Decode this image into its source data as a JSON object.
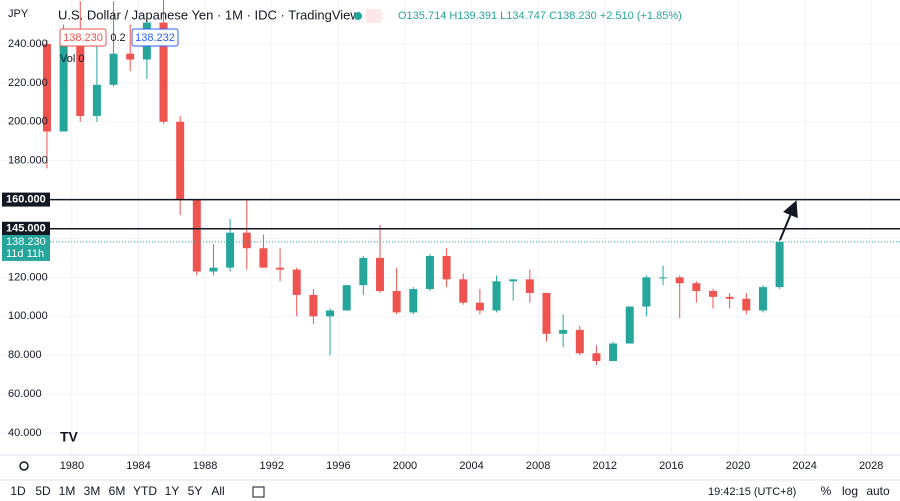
{
  "header": {
    "symbol": "JPY",
    "title": "U.S. Dollar / Japanese Yen · 1M · IDC · TradingView",
    "ohlc_text": "O135.714 H139.391 L134.747 C138.230 +2.510 (+1.85%)",
    "bid": "138.230",
    "spread": "0.2",
    "ask": "138.232",
    "volume": "Vol 0"
  },
  "chart_data": {
    "type": "candlestick",
    "x": [
      1978.5,
      1979.5,
      1980.5,
      1981.5,
      1982.5,
      1983.5,
      1984.5,
      1985.5,
      1986.5,
      1987.5,
      1988.5,
      1989.5,
      1990.5,
      1991.5,
      1992.5,
      1993.5,
      1994.5,
      1995.5,
      1996.5,
      1997.5,
      1998.5,
      1999.5,
      2000.5,
      2001.5,
      2002.5,
      2003.5,
      2004.5,
      2005.5,
      2006.5,
      2007.5,
      2008.5,
      2009.5,
      2010.5,
      2011.5,
      2012.5,
      2013.5,
      2014.5,
      2015.5,
      2016.5,
      2017.5,
      2018.5,
      2019.5,
      2020.5,
      2021.5,
      2022.5
    ],
    "series": [
      {
        "open": [
          240,
          195,
          240,
          203,
          219,
          235,
          232,
          251,
          200,
          160,
          123,
          125,
          143,
          135,
          125,
          124,
          111,
          100,
          103,
          116,
          130,
          113,
          102,
          114,
          131,
          119,
          107,
          103,
          118,
          119,
          112,
          91,
          93,
          81,
          77,
          86,
          105,
          120,
          120,
          117,
          113,
          110,
          109,
          103,
          115
        ],
        "high": [
          242,
          250,
          262,
          246,
          262,
          250,
          252,
          263,
          203,
          160,
          137,
          150,
          160,
          142,
          135,
          125,
          114,
          104,
          116,
          131,
          147,
          125,
          115,
          132,
          135,
          122,
          114,
          121,
          119,
          124,
          112,
          101,
          95,
          85,
          87,
          105,
          121,
          126,
          121,
          118,
          114,
          112,
          112,
          116,
          139.391
        ],
        "low": [
          176,
          195,
          200,
          200,
          218,
          226,
          222,
          199,
          152,
          121,
          121,
          123,
          124,
          125,
          118,
          100,
          96,
          80,
          103,
          111,
          112,
          101,
          101,
          113,
          115,
          106,
          101,
          102,
          108,
          107,
          87,
          84,
          80,
          75,
          77,
          86,
          100,
          116,
          99,
          107,
          104,
          104,
          101,
          102,
          114
        ],
        "close": [
          195,
          240,
          203,
          219,
          235,
          232,
          251,
          200,
          160,
          123,
          125,
          143,
          135,
          125,
          124,
          111,
          100,
          103,
          116,
          130,
          113,
          102,
          114,
          131,
          119,
          107,
          103,
          118,
          119,
          112,
          91,
          93,
          81,
          77,
          86,
          105,
          120,
          120,
          117,
          113,
          110,
          109,
          103,
          115,
          138.23
        ]
      }
    ],
    "up_color": "#26a69a",
    "down_color": "#ef5350",
    "xlim": [
      1975.68,
      2029.73
    ],
    "ylim": [
      28.7,
      262.6
    ],
    "xticks": [
      1980,
      1984,
      1988,
      1992,
      1996,
      2000,
      2004,
      2008,
      2012,
      2016,
      2020,
      2024,
      2028
    ],
    "yticks": [
      {
        "value": 40,
        "label": "40.000"
      },
      {
        "value": 60,
        "label": "60.000"
      },
      {
        "value": 80,
        "label": "80.000"
      },
      {
        "value": 100,
        "label": "100.000"
      },
      {
        "value": 120,
        "label": "120.000"
      },
      {
        "value": 140,
        "label": "140.000"
      },
      {
        "value": 160,
        "label": "160.000"
      },
      {
        "value": 180,
        "label": "180.000"
      },
      {
        "value": 200,
        "label": "200.000"
      },
      {
        "value": 220,
        "label": "220.000"
      },
      {
        "value": 240,
        "label": "240.000"
      }
    ],
    "hlines": [
      {
        "value": 160,
        "label": "160.000"
      },
      {
        "value": 145,
        "label": "145.000"
      }
    ],
    "last_price": {
      "value": 138.23,
      "label": "138.230",
      "countdown": "11d 11h"
    },
    "grid": true
  },
  "toolbar": {
    "timeframes": [
      "1D",
      "5D",
      "1M",
      "3M",
      "6M",
      "YTD",
      "1Y",
      "5Y",
      "All"
    ],
    "clock": "19:42:15 (UTC+8)",
    "scale_options": [
      "%",
      "log",
      "auto"
    ]
  }
}
